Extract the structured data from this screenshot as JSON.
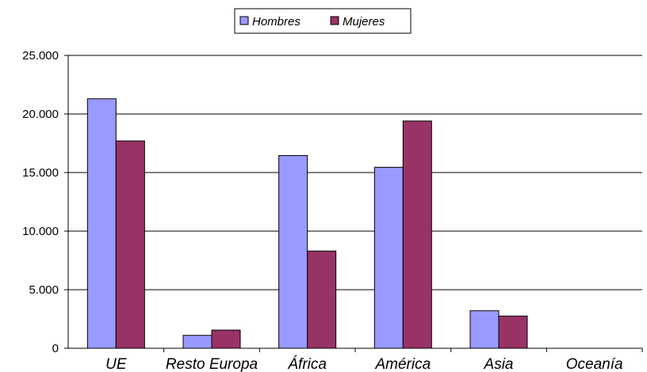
{
  "chart_data": {
    "type": "bar",
    "categories": [
      "UE",
      "Resto Europa",
      "África",
      "América",
      "Asia",
      "Oceanía"
    ],
    "series": [
      {
        "name": "Hombres",
        "values": [
          21300,
          1100,
          16450,
          15450,
          3200,
          0
        ],
        "color": "#9999ff"
      },
      {
        "name": "Mujeres",
        "values": [
          17700,
          1550,
          8300,
          19400,
          2750,
          0
        ],
        "color": "#993366"
      }
    ],
    "ylim": [
      0,
      25000
    ],
    "yticks": [
      0,
      5000,
      10000,
      15000,
      20000,
      25000
    ],
    "ytick_labels": [
      "0",
      "5.000",
      "10.000",
      "15.000",
      "20.000",
      "25.000"
    ],
    "grid": true,
    "legend_position": "top-center",
    "title": "",
    "xlabel": "",
    "ylabel": ""
  }
}
